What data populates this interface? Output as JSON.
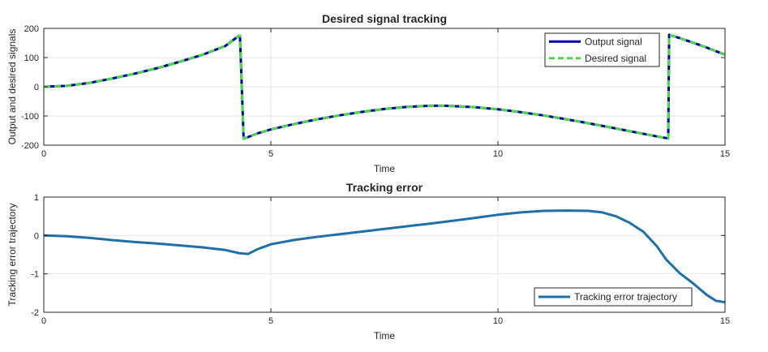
{
  "chart_data": [
    {
      "type": "line",
      "title": "Desired signal tracking",
      "xlabel": "Time",
      "ylabel": "Output and desired signals",
      "xlim": [
        0,
        15
      ],
      "ylim": [
        -200,
        200
      ],
      "xticks": [
        0,
        5,
        10,
        15
      ],
      "yticks": [
        -200,
        -100,
        0,
        100,
        200
      ],
      "grid": true,
      "legend_position": "top-right",
      "series": [
        {
          "name": "Output signal",
          "color": "#0000a0",
          "style": "solid",
          "x": [
            0,
            0.5,
            1,
            1.5,
            2,
            2.5,
            3,
            3.5,
            4,
            4.3,
            4.32,
            4.4,
            4.7,
            5,
            5.5,
            6,
            6.5,
            7,
            7.5,
            8,
            8.5,
            8.8,
            9,
            9.5,
            10,
            10.5,
            11,
            11.5,
            12,
            12.5,
            13,
            13.5,
            13.75,
            13.77,
            14,
            14.5,
            15
          ],
          "y": [
            0,
            3,
            13,
            28,
            45,
            64,
            86,
            110,
            140,
            175,
            175,
            -178,
            -160,
            -146,
            -128,
            -112,
            -98,
            -86,
            -76,
            -69,
            -65,
            -65,
            -66,
            -70,
            -77,
            -87,
            -98,
            -111,
            -125,
            -140,
            -155,
            -170,
            -177,
            178,
            167,
            140,
            110
          ]
        },
        {
          "name": "Desired signal",
          "color": "#4cd64c",
          "style": "dashed",
          "x": [
            0,
            0.5,
            1,
            1.5,
            2,
            2.5,
            3,
            3.5,
            4,
            4.3,
            4.32,
            4.4,
            4.7,
            5,
            5.5,
            6,
            6.5,
            7,
            7.5,
            8,
            8.5,
            8.8,
            9,
            9.5,
            10,
            10.5,
            11,
            11.5,
            12,
            12.5,
            13,
            13.5,
            13.75,
            13.77,
            14,
            14.5,
            15
          ],
          "y": [
            0,
            3,
            13,
            28,
            45,
            64,
            86,
            110,
            140,
            175,
            175,
            -178,
            -160,
            -146,
            -128,
            -112,
            -98,
            -86,
            -76,
            -69,
            -65,
            -65,
            -66,
            -70,
            -77,
            -87,
            -98,
            -111,
            -125,
            -140,
            -155,
            -170,
            -177,
            178,
            167,
            140,
            110
          ]
        }
      ]
    },
    {
      "type": "line",
      "title": "Tracking error",
      "xlabel": "Time",
      "ylabel": "Tracking error trajectory",
      "xlim": [
        0,
        15
      ],
      "ylim": [
        -2,
        1
      ],
      "xticks": [
        0,
        5,
        10,
        15
      ],
      "yticks": [
        -2,
        -1,
        0,
        1
      ],
      "grid": true,
      "legend_position": "bottom-right",
      "series": [
        {
          "name": "Tracking error trajectory",
          "color": "#1f6fa8",
          "style": "solid",
          "x": [
            0,
            0.5,
            1,
            1.5,
            2,
            2.5,
            3,
            3.5,
            4,
            4.3,
            4.5,
            4.7,
            5,
            5.5,
            6,
            6.5,
            7,
            7.5,
            8,
            8.5,
            9,
            9.5,
            10,
            10.5,
            11,
            11.5,
            12,
            12.3,
            12.6,
            12.9,
            13.2,
            13.5,
            13.7,
            14,
            14.3,
            14.6,
            14.8,
            15
          ],
          "y": [
            0,
            -0.02,
            -0.06,
            -0.12,
            -0.17,
            -0.21,
            -0.26,
            -0.31,
            -0.38,
            -0.46,
            -0.48,
            -0.36,
            -0.23,
            -0.12,
            -0.04,
            0.03,
            0.1,
            0.17,
            0.24,
            0.31,
            0.38,
            0.46,
            0.54,
            0.6,
            0.64,
            0.65,
            0.64,
            0.6,
            0.5,
            0.33,
            0.1,
            -0.28,
            -0.62,
            -0.98,
            -1.25,
            -1.55,
            -1.7,
            -1.74
          ]
        }
      ]
    }
  ]
}
